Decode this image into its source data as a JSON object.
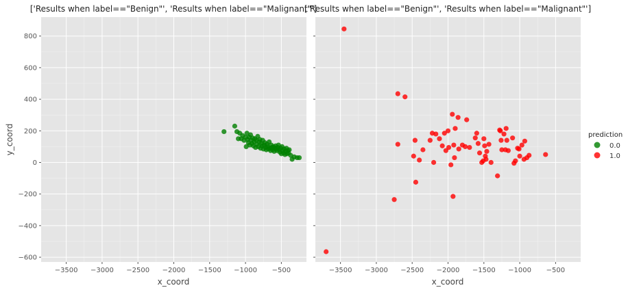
{
  "chart_data": {
    "type": "scatter",
    "facet_titles": [
      "['Results when label==\"Benign\"', 'Results when label==\"Malignant\"']",
      "['Results when label==\"Benign\"', 'Results when label==\"Malignant\"']"
    ],
    "xlabel": "x_coord",
    "ylabel": "y_coord",
    "xlim": [
      -3850,
      -150
    ],
    "ylim": [
      -630,
      920
    ],
    "x_ticks": [
      -3500,
      -3000,
      -2500,
      -2000,
      -1500,
      -1000,
      -500
    ],
    "x_tick_labels": [
      "−3500",
      "−3000",
      "−2500",
      "−2000",
      "−1500",
      "−1000",
      "−500"
    ],
    "y_ticks": [
      -600,
      -400,
      -200,
      0,
      200,
      400,
      600,
      800
    ],
    "y_tick_labels": [
      "−600",
      "−400",
      "−200",
      "0",
      "200",
      "400",
      "600",
      "800"
    ],
    "grid": true,
    "legend": {
      "title": "prediction",
      "position": "right",
      "entries": [
        {
          "label": "0.0",
          "color": "#008000"
        },
        {
          "label": "1.0",
          "color": "#ff0000"
        }
      ]
    },
    "series": [
      {
        "name": "0.0",
        "panel": 0,
        "color": "#008000",
        "points": [
          [
            -1300,
            195
          ],
          [
            -1150,
            230
          ],
          [
            -1120,
            195
          ],
          [
            -1100,
            150
          ],
          [
            -1080,
            185
          ],
          [
            -1060,
            150
          ],
          [
            -1040,
            170
          ],
          [
            -1020,
            140
          ],
          [
            -1000,
            160
          ],
          [
            -990,
            100
          ],
          [
            -980,
            185
          ],
          [
            -970,
            145
          ],
          [
            -960,
            125
          ],
          [
            -950,
            160
          ],
          [
            -940,
            110
          ],
          [
            -930,
            175
          ],
          [
            -920,
            140
          ],
          [
            -910,
            120
          ],
          [
            -900,
            155
          ],
          [
            -890,
            105
          ],
          [
            -880,
            130
          ],
          [
            -870,
            150
          ],
          [
            -860,
            95
          ],
          [
            -850,
            140
          ],
          [
            -840,
            115
          ],
          [
            -830,
            165
          ],
          [
            -820,
            100
          ],
          [
            -810,
            130
          ],
          [
            -800,
            145
          ],
          [
            -790,
            90
          ],
          [
            -780,
            120
          ],
          [
            -770,
            105
          ],
          [
            -760,
            140
          ],
          [
            -750,
            85
          ],
          [
            -740,
            110
          ],
          [
            -730,
            125
          ],
          [
            -720,
            95
          ],
          [
            -710,
            80
          ],
          [
            -700,
            115
          ],
          [
            -690,
            100
          ],
          [
            -680,
            85
          ],
          [
            -670,
            130
          ],
          [
            -660,
            90
          ],
          [
            -650,
            75
          ],
          [
            -640,
            110
          ],
          [
            -630,
            95
          ],
          [
            -620,
            80
          ],
          [
            -610,
            100
          ],
          [
            -600,
            70
          ],
          [
            -590,
            90
          ],
          [
            -580,
            105
          ],
          [
            -570,
            85
          ],
          [
            -560,
            75
          ],
          [
            -550,
            95
          ],
          [
            -540,
            110
          ],
          [
            -530,
            80
          ],
          [
            -520,
            65
          ],
          [
            -510,
            90
          ],
          [
            -500,
            55
          ],
          [
            -490,
            100
          ],
          [
            -480,
            75
          ],
          [
            -470,
            60
          ],
          [
            -460,
            85
          ],
          [
            -450,
            50
          ],
          [
            -440,
            70
          ],
          [
            -430,
            90
          ],
          [
            -420,
            55
          ],
          [
            -410,
            75
          ],
          [
            -400,
            60
          ],
          [
            -390,
            80
          ],
          [
            -370,
            45
          ],
          [
            -350,
            20
          ],
          [
            -320,
            35
          ],
          [
            -280,
            30
          ],
          [
            -250,
            30
          ]
        ]
      },
      {
        "name": "1.0",
        "panel": 1,
        "color": "#ff0000",
        "points": [
          [
            -3450,
            845
          ],
          [
            -3700,
            -565
          ],
          [
            -2750,
            -235
          ],
          [
            -2700,
            435
          ],
          [
            -2700,
            115
          ],
          [
            -2600,
            415
          ],
          [
            -2480,
            40
          ],
          [
            -2460,
            140
          ],
          [
            -2450,
            -125
          ],
          [
            -2400,
            15
          ],
          [
            -2350,
            80
          ],
          [
            -2250,
            140
          ],
          [
            -2220,
            185
          ],
          [
            -2200,
            0
          ],
          [
            -2170,
            180
          ],
          [
            -2120,
            150
          ],
          [
            -2080,
            105
          ],
          [
            -2050,
            185
          ],
          [
            -2030,
            75
          ],
          [
            -2000,
            200
          ],
          [
            -1990,
            95
          ],
          [
            -1960,
            -15
          ],
          [
            -1940,
            305
          ],
          [
            -1930,
            -215
          ],
          [
            -1920,
            110
          ],
          [
            -1910,
            30
          ],
          [
            -1900,
            215
          ],
          [
            -1860,
            285
          ],
          [
            -1850,
            85
          ],
          [
            -1800,
            110
          ],
          [
            -1760,
            100
          ],
          [
            -1740,
            270
          ],
          [
            -1700,
            95
          ],
          [
            -1620,
            155
          ],
          [
            -1600,
            185
          ],
          [
            -1580,
            120
          ],
          [
            -1560,
            60
          ],
          [
            -1530,
            0
          ],
          [
            -1510,
            10
          ],
          [
            -1500,
            150
          ],
          [
            -1490,
            105
          ],
          [
            -1480,
            40
          ],
          [
            -1470,
            20
          ],
          [
            -1460,
            70
          ],
          [
            -1430,
            115
          ],
          [
            -1400,
            0
          ],
          [
            -1310,
            -85
          ],
          [
            -1280,
            205
          ],
          [
            -1270,
            200
          ],
          [
            -1260,
            140
          ],
          [
            -1250,
            80
          ],
          [
            -1220,
            180
          ],
          [
            -1200,
            80
          ],
          [
            -1190,
            215
          ],
          [
            -1180,
            140
          ],
          [
            -1160,
            75
          ],
          [
            -1100,
            155
          ],
          [
            -1080,
            -5
          ],
          [
            -1060,
            10
          ],
          [
            -1030,
            90
          ],
          [
            -1010,
            85
          ],
          [
            -1000,
            40
          ],
          [
            -970,
            110
          ],
          [
            -940,
            20
          ],
          [
            -930,
            135
          ],
          [
            -900,
            30
          ],
          [
            -870,
            45
          ],
          [
            -640,
            50
          ]
        ]
      }
    ]
  }
}
